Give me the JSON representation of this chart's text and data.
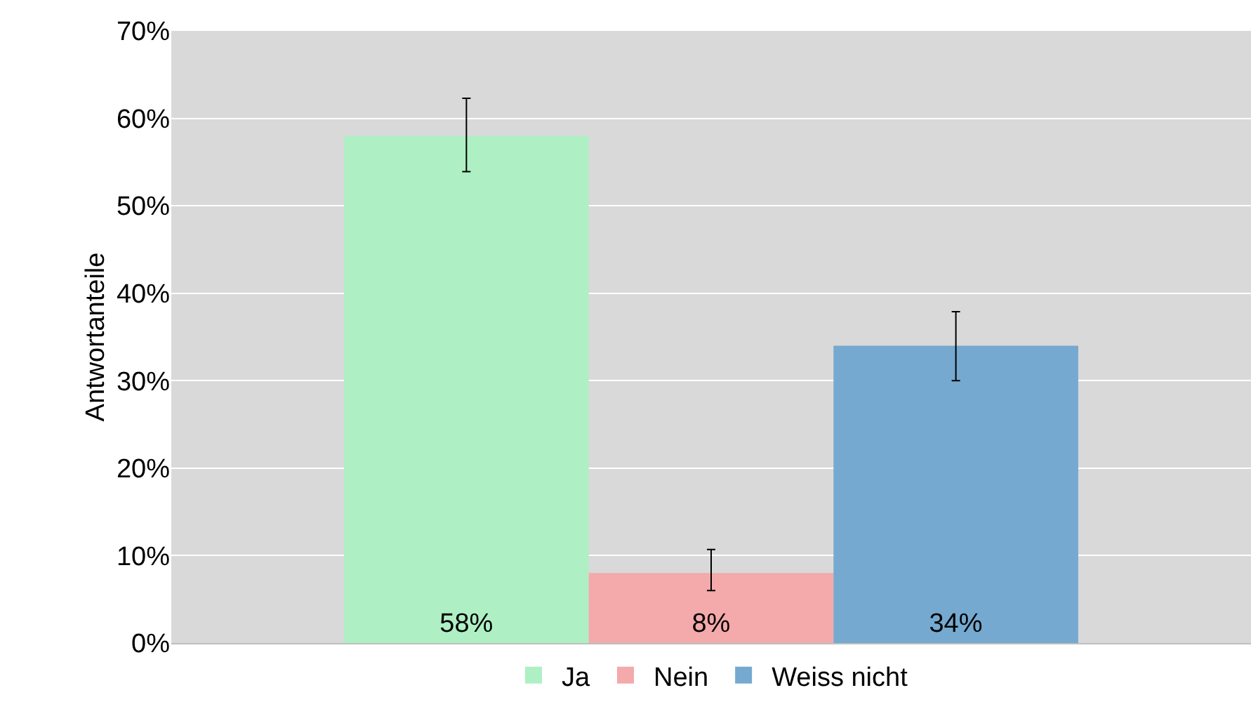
{
  "chart_data": {
    "type": "bar",
    "ylabel": "Antwortanteile",
    "categories": [
      null
    ],
    "series": [
      {
        "name": "Ja",
        "color": "#aef0c4",
        "values": [
          58
        ],
        "errors": [
          [
            53.9,
            62.3
          ]
        ],
        "value_labels": [
          "58%"
        ]
      },
      {
        "name": "Nein",
        "color": "#f4a9aa",
        "values": [
          8
        ],
        "errors": [
          [
            6,
            10.7
          ]
        ],
        "value_labels": [
          "8%"
        ]
      },
      {
        "name": "Weiss nicht",
        "color": "#75a9cf",
        "values": [
          34
        ],
        "errors": [
          [
            30,
            37.9
          ]
        ],
        "value_labels": [
          "34%"
        ]
      }
    ],
    "ylim": [
      0,
      70
    ],
    "yticks": [
      {
        "value": 0,
        "label": "0%"
      },
      {
        "value": 10,
        "label": "10%"
      },
      {
        "value": 20,
        "label": "20%"
      },
      {
        "value": 30,
        "label": "30%"
      },
      {
        "value": 40,
        "label": "40%"
      },
      {
        "value": 50,
        "label": "50%"
      },
      {
        "value": 60,
        "label": "60%"
      },
      {
        "value": 70,
        "label": "70%"
      }
    ],
    "grid": "y",
    "legend": "bottom",
    "tick_labels": "y"
  }
}
